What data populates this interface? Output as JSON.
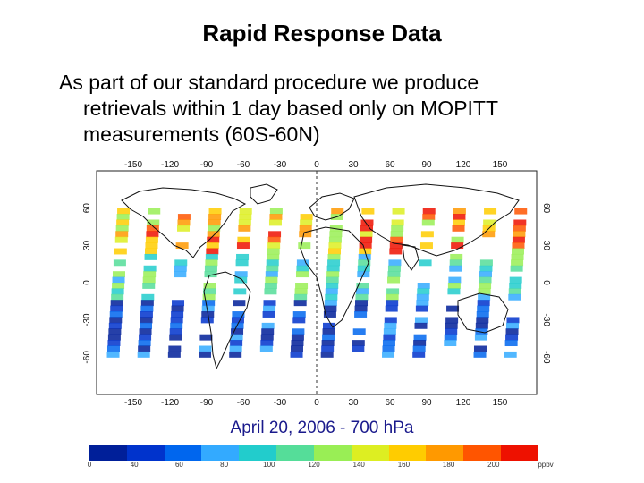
{
  "slide": {
    "title": "Rapid Response Data",
    "bullet_lines": [
      "As part of our standard procedure we produce",
      "retrievals within 1 day based only on MOPITT",
      "measurements (60S-60N)"
    ],
    "date_label": "April 20, 2006 - 700 hPa"
  },
  "map": {
    "lon_ticks": [
      "-150",
      "-120",
      "-90",
      "-60",
      "-30",
      "0",
      "30",
      "60",
      "90",
      "120",
      "150"
    ],
    "lat_ticks": [
      "60",
      "30",
      "0",
      "-30",
      "-60"
    ],
    "lon_range": [
      -180,
      180
    ],
    "lat_range": [
      -90,
      90
    ],
    "dashed_meridian": "0",
    "swaths": [
      {
        "lon": -158,
        "lat_top": 60,
        "lat_bottom": -60
      },
      {
        "lon": -133,
        "lat_top": 60,
        "lat_bottom": -60
      },
      {
        "lon": -108,
        "lat_top": 60,
        "lat_bottom": -60
      },
      {
        "lon": -83,
        "lat_top": 60,
        "lat_bottom": -60
      },
      {
        "lon": -58,
        "lat_top": 60,
        "lat_bottom": -60
      },
      {
        "lon": -33,
        "lat_top": 60,
        "lat_bottom": -60
      },
      {
        "lon": -8,
        "lat_top": 60,
        "lat_bottom": -60
      },
      {
        "lon": 17,
        "lat_top": 60,
        "lat_bottom": -60
      },
      {
        "lon": 42,
        "lat_top": 60,
        "lat_bottom": -60
      },
      {
        "lon": 67,
        "lat_top": 60,
        "lat_bottom": -60
      },
      {
        "lon": 92,
        "lat_top": 60,
        "lat_bottom": -60
      },
      {
        "lon": 117,
        "lat_top": 60,
        "lat_bottom": -60
      },
      {
        "lon": 142,
        "lat_top": 60,
        "lat_bottom": -60
      },
      {
        "lon": 167,
        "lat_top": 60,
        "lat_bottom": -60
      }
    ]
  },
  "colorbar": {
    "colors": [
      "#001f99",
      "#0033cc",
      "#0066ee",
      "#33aaff",
      "#22cccc",
      "#55dd99",
      "#99ee55",
      "#ddee22",
      "#ffcc00",
      "#ff9900",
      "#ff5500",
      "#ee1100"
    ],
    "tick_labels": [
      "0",
      "40",
      "60",
      "80",
      "100",
      "120",
      "140",
      "160",
      "180",
      "200",
      "ppbv"
    ]
  }
}
